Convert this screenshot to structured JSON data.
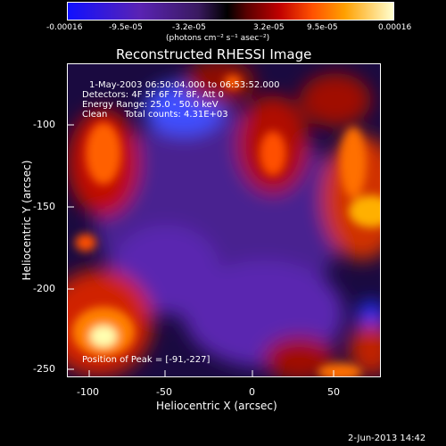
{
  "colorbar": {
    "tick_labels": [
      "-0.00016",
      "-9.5e-05",
      "-3.2e-05",
      "3.2e-05",
      "9.5e-05",
      "0.00016"
    ],
    "units": "(photons cm⁻² s⁻¹ asec⁻²)"
  },
  "title": "Reconstructed RHESSI Image",
  "annotations": {
    "time_range": "1-May-2003 06:50:04.000 to 06:53:52.000",
    "detectors": "Detectors: 4F 5F 6F 7F 8F, Att 0",
    "energy": "Energy Range: 25.0 - 50.0 keV",
    "clean": "Clean      Total counts: 4.31E+03",
    "peak": "Position of Peak = [-91,-227]"
  },
  "axes": {
    "xlabel": "Heliocentric X (arcsec)",
    "ylabel": "Heliocentric Y (arcsec)",
    "xticks": [
      "-100",
      "-50",
      "0",
      "50"
    ],
    "yticks": [
      "-100",
      "-150",
      "-200",
      "-250"
    ]
  },
  "footer_date": "2-Jun-2013 14:42",
  "colors": {
    "background": "#000000",
    "bright": "#ffffb0",
    "mid_orange": "#ff8000",
    "purple": "#5a23b4"
  }
}
